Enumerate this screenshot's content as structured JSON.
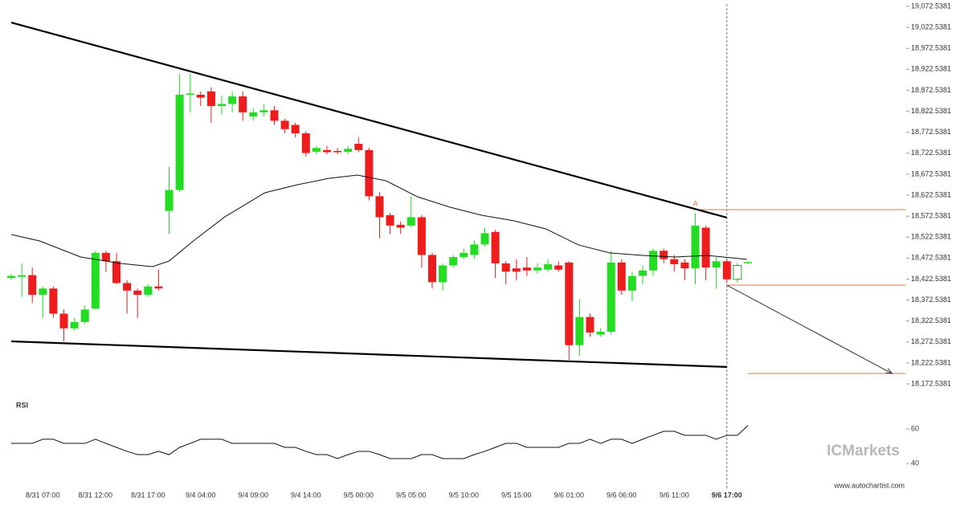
{
  "chart_data": {
    "type": "candlestick",
    "up_color": "#22dd22",
    "down_color": "#ee1c1c",
    "last_candle_style": "hollow",
    "categories": [
      null,
      null,
      null,
      "8/31 07:00",
      null,
      null,
      null,
      null,
      "8/31 12:00",
      null,
      null,
      null,
      null,
      "8/31 17:00",
      null,
      null,
      null,
      null,
      "9/4 04:00",
      null,
      null,
      null,
      null,
      "9/4 09:00",
      null,
      null,
      null,
      null,
      "9/4 14:00",
      null,
      null,
      null,
      null,
      "9/5 00:00",
      null,
      null,
      null,
      null,
      "9/5 05:00",
      null,
      null,
      null,
      null,
      "9/5 10:00",
      null,
      null,
      null,
      null,
      "9/5 15:00",
      null,
      null,
      null,
      null,
      "9/6 01:00",
      null,
      null,
      null,
      null,
      "9/6 06:00",
      null,
      null,
      null,
      null,
      "9/6 11:00",
      null,
      null,
      null,
      null,
      "9/6 17:00",
      null,
      null
    ],
    "current_category": 68,
    "open": [
      18425,
      18428,
      18432,
      18385,
      18400,
      18340,
      18305,
      18320,
      18352,
      18485,
      18465,
      18413,
      18395,
      18385,
      18405,
      18585,
      18635,
      18862,
      18862,
      18870,
      18835,
      18840,
      18858,
      18810,
      18820,
      18825,
      18800,
      18790,
      18770,
      18726,
      18730,
      18728,
      18726,
      18745,
      18730,
      18620,
      18575,
      18552,
      18550,
      18570,
      18480,
      18415,
      18455,
      18475,
      18480,
      18505,
      18535,
      18460,
      18448,
      18450,
      18443,
      18445,
      18455,
      18462,
      18265,
      18332,
      18290,
      18297,
      18462,
      18395,
      18430,
      18443,
      18490,
      18470,
      18462,
      18448,
      18545,
      18450,
      18465,
      18422,
      18462
    ],
    "high": [
      18435,
      18460,
      18450,
      18405,
      18405,
      18350,
      18330,
      18360,
      18490,
      18490,
      18485,
      18420,
      18400,
      18410,
      18445,
      18690,
      18912,
      18912,
      18870,
      18880,
      18860,
      18870,
      18870,
      18830,
      18840,
      18835,
      18805,
      18795,
      18775,
      18740,
      18740,
      18735,
      18740,
      18760,
      18735,
      18630,
      18580,
      18560,
      18620,
      18575,
      18485,
      18460,
      18480,
      18495,
      18515,
      18545,
      18540,
      18465,
      18470,
      18475,
      18460,
      18470,
      18465,
      18465,
      18375,
      18340,
      18305,
      18490,
      18470,
      18440,
      18455,
      18495,
      18495,
      18480,
      18470,
      18580,
      18550,
      18475,
      18470,
      18460,
      18465
    ],
    "low": [
      18420,
      18380,
      18365,
      18330,
      18330,
      18274,
      18300,
      18315,
      18350,
      18440,
      18410,
      18340,
      18330,
      18380,
      18395,
      18530,
      18630,
      18820,
      18835,
      18795,
      18815,
      18820,
      18800,
      18800,
      18810,
      18790,
      18770,
      18760,
      18715,
      18720,
      18720,
      18720,
      18720,
      18725,
      18610,
      18520,
      18530,
      18530,
      18545,
      18450,
      18400,
      18395,
      18450,
      18470,
      18470,
      18500,
      18425,
      18410,
      18420,
      18430,
      18435,
      18440,
      18440,
      18230,
      18240,
      18285,
      18285,
      18290,
      18385,
      18370,
      18410,
      18430,
      18460,
      18440,
      18420,
      18410,
      18420,
      18400,
      18415,
      18415,
      18458
    ],
    "close": [
      18430,
      18432,
      18385,
      18400,
      18340,
      18305,
      18320,
      18350,
      18485,
      18465,
      18413,
      18395,
      18385,
      18405,
      18400,
      18635,
      18862,
      18865,
      18855,
      18835,
      18840,
      18858,
      18820,
      18820,
      18825,
      18800,
      18780,
      18770,
      18723,
      18735,
      18725,
      18725,
      18733,
      18730,
      18620,
      18570,
      18550,
      18545,
      18570,
      18480,
      18415,
      18455,
      18475,
      18485,
      18505,
      18532,
      18460,
      18440,
      18440,
      18443,
      18450,
      18458,
      18445,
      18265,
      18332,
      18295,
      18297,
      18462,
      18395,
      18430,
      18443,
      18490,
      18470,
      18458,
      18448,
      18550,
      18450,
      18465,
      18422,
      18455,
      18463
    ],
    "moving_average": {
      "color": "#111111",
      "x": [
        0,
        2.7,
        6.6,
        10.4,
        13.4,
        15,
        17.3,
        20.3,
        24.1,
        27.2,
        30.2,
        32.9,
        35.6,
        38.6,
        41.7,
        44.7,
        47.8,
        50.8,
        53.9,
        56.9,
        60,
        63.1,
        66.1,
        69.9
      ],
      "values": [
        18528.7,
        18513.4,
        18475.1,
        18459.8,
        18452.1,
        18465.5,
        18513.4,
        18570.9,
        18628.3,
        18647.4,
        18662.8,
        18670.4,
        18657,
        18618.7,
        18593.8,
        18574.7,
        18561.3,
        18542.2,
        18503.9,
        18484.7,
        18479,
        18475.1,
        18479,
        18469.5
      ]
    },
    "trendlines": [
      {
        "x": [
          0,
          68
        ],
        "values": [
          19034.2,
          18569
        ]
      },
      {
        "x": [
          0,
          68
        ],
        "values": [
          18274,
          18213
        ]
      }
    ],
    "levels": [
      {
        "value": 18588,
        "x": [
          65,
          85
        ]
      },
      {
        "value": 18408,
        "x": [
          68,
          85
        ]
      },
      {
        "value": 18197.4,
        "x": [
          70,
          85
        ]
      }
    ],
    "forecast": {
      "x": [
        68,
        83.7
      ],
      "values": [
        18408,
        18197.4
      ]
    },
    "annotation": {
      "text": "A",
      "x": 65,
      "value": 18588
    },
    "ylim": [
      18172.5381,
      19072.5381
    ],
    "yticks": [
      {
        "value": 18172.5381,
        "label": "18,172.5381"
      },
      {
        "value": 18222.5381,
        "label": "18,222.5381"
      },
      {
        "value": 18272.5381,
        "label": "18,272.5381"
      },
      {
        "value": 18322.5381,
        "label": "18,322.5381"
      },
      {
        "value": 18372.5381,
        "label": "18,372.5381"
      },
      {
        "value": 18422.5381,
        "label": "18,422.5381"
      },
      {
        "value": 18472.5381,
        "label": "18,472.5381"
      },
      {
        "value": 18522.5381,
        "label": "18,522.5381"
      },
      {
        "value": 18572.5381,
        "label": "18,572.5381"
      },
      {
        "value": 18622.5381,
        "label": "18,622.5381"
      },
      {
        "value": 18672.5381,
        "label": "18,672.5381"
      },
      {
        "value": 18722.5381,
        "label": "18,722.5381"
      },
      {
        "value": 18772.5381,
        "label": "18,772.5381"
      },
      {
        "value": 18822.5381,
        "label": "18,822.5381"
      },
      {
        "value": 18872.5381,
        "label": "18,872.5381"
      },
      {
        "value": 18922.5381,
        "label": "18,922.5381"
      },
      {
        "value": 18972.5381,
        "label": "18,972.5381"
      },
      {
        "value": 19022.5381,
        "label": "19,022.5381"
      },
      {
        "value": 19072.5381,
        "label": "19,072.5381"
      }
    ],
    "rsi": {
      "title": "RSI",
      "color": "#111111",
      "ylim": [
        30,
        80
      ],
      "yticks": [
        40,
        60
      ],
      "values": [
        51.6,
        51.6,
        51.6,
        54,
        54,
        51.6,
        51.6,
        51.6,
        54,
        51.6,
        49.3,
        47,
        45.1,
        45.1,
        47,
        45.1,
        49.3,
        51.6,
        54,
        54,
        54,
        51.6,
        51.6,
        51.6,
        51.6,
        51.6,
        49.3,
        49.3,
        47,
        45.1,
        45.1,
        42.8,
        45.1,
        47,
        47,
        45.1,
        42.8,
        42.8,
        42.8,
        45.1,
        45.1,
        42.8,
        42.8,
        42.8,
        45.1,
        47,
        49.3,
        51.6,
        51.6,
        49.3,
        49.3,
        49.3,
        49.3,
        51.6,
        51.6,
        54,
        51.6,
        54,
        54,
        51.6,
        54,
        56.3,
        58.6,
        58.6,
        56.3,
        56.3,
        56.3,
        54,
        56.3,
        56.3,
        61.9
      ]
    },
    "watermark": "ICMarkets",
    "source": "www.autochartist.com"
  }
}
